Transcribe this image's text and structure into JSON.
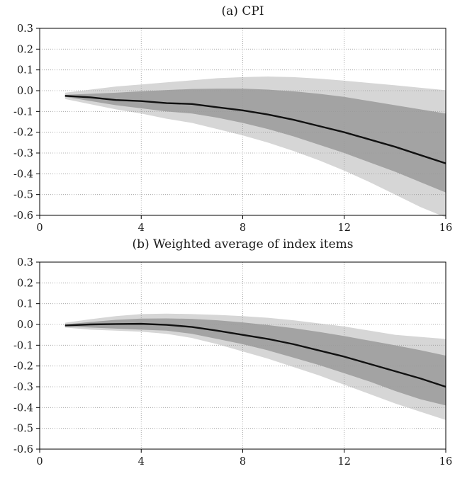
{
  "chart_data": [
    {
      "type": "line",
      "title": "(a) CPI",
      "xlabel": "",
      "ylabel": "",
      "xlim": [
        0,
        16
      ],
      "ylim": [
        -0.6,
        0.3
      ],
      "xticks": [
        0,
        4,
        8,
        12,
        16
      ],
      "yticks": [
        0.3,
        0.2,
        0.1,
        0.0,
        -0.1,
        -0.2,
        -0.3,
        -0.4,
        -0.5,
        -0.6
      ],
      "xtick_labels": [
        "0",
        "4",
        "8",
        "12",
        "16"
      ],
      "ytick_labels": [
        "0.3",
        "0.2",
        "0.1",
        "0.0",
        "-0.1",
        "-0.2",
        "-0.3",
        "-0.4",
        "-0.5",
        "-0.6"
      ],
      "grid": "dotted",
      "x": [
        1,
        2,
        3,
        4,
        5,
        6,
        7,
        8,
        9,
        10,
        11,
        12,
        13,
        14,
        15,
        16
      ],
      "line": [
        -0.025,
        -0.032,
        -0.045,
        -0.05,
        -0.06,
        -0.064,
        -0.08,
        -0.095,
        -0.115,
        -0.14,
        -0.17,
        -0.2,
        -0.235,
        -0.27,
        -0.31,
        -0.35
      ],
      "inner_band": {
        "upper": [
          -0.02,
          -0.015,
          -0.01,
          -0.003,
          0.003,
          0.008,
          0.01,
          0.01,
          0.005,
          -0.003,
          -0.015,
          -0.03,
          -0.05,
          -0.07,
          -0.09,
          -0.11
        ],
        "lower": [
          -0.03,
          -0.05,
          -0.07,
          -0.085,
          -0.1,
          -0.11,
          -0.13,
          -0.155,
          -0.185,
          -0.22,
          -0.26,
          -0.3,
          -0.345,
          -0.39,
          -0.44,
          -0.49
        ]
      },
      "outer_band": {
        "upper": [
          -0.01,
          0.005,
          0.02,
          0.03,
          0.04,
          0.05,
          0.06,
          0.065,
          0.068,
          0.065,
          0.058,
          0.048,
          0.037,
          0.026,
          0.014,
          0.002
        ],
        "lower": [
          -0.04,
          -0.065,
          -0.09,
          -0.11,
          -0.135,
          -0.155,
          -0.185,
          -0.215,
          -0.25,
          -0.29,
          -0.335,
          -0.385,
          -0.44,
          -0.5,
          -0.56,
          -0.61
        ]
      }
    },
    {
      "type": "line",
      "title": "(b) Weighted average of index items",
      "xlabel": "",
      "ylabel": "",
      "xlim": [
        0,
        16
      ],
      "ylim": [
        -0.6,
        0.3
      ],
      "xticks": [
        0,
        4,
        8,
        12,
        16
      ],
      "yticks": [
        0.3,
        0.2,
        0.1,
        0.0,
        -0.1,
        -0.2,
        -0.3,
        -0.4,
        -0.5,
        -0.6
      ],
      "xtick_labels": [
        "0",
        "4",
        "8",
        "12",
        "16"
      ],
      "ytick_labels": [
        "0.3",
        "0.2",
        "0.1",
        "0.0",
        "-0.1",
        "-0.2",
        "-0.3",
        "-0.4",
        "-0.5",
        "-0.6"
      ],
      "grid": "dotted",
      "x": [
        1,
        2,
        3,
        4,
        5,
        6,
        7,
        8,
        9,
        10,
        11,
        12,
        13,
        14,
        15,
        16
      ],
      "line": [
        -0.005,
        0.0,
        0.002,
        0.003,
        -0.002,
        -0.012,
        -0.03,
        -0.05,
        -0.07,
        -0.095,
        -0.125,
        -0.155,
        -0.19,
        -0.225,
        -0.26,
        -0.3
      ],
      "inner_band": {
        "upper": [
          0.0,
          0.012,
          0.022,
          0.028,
          0.029,
          0.027,
          0.02,
          0.01,
          -0.003,
          -0.018,
          -0.036,
          -0.056,
          -0.078,
          -0.1,
          -0.124,
          -0.15
        ],
        "lower": [
          -0.01,
          -0.015,
          -0.02,
          -0.025,
          -0.03,
          -0.045,
          -0.07,
          -0.095,
          -0.125,
          -0.16,
          -0.195,
          -0.235,
          -0.275,
          -0.32,
          -0.36,
          -0.39
        ]
      },
      "outer_band": {
        "upper": [
          0.008,
          0.025,
          0.04,
          0.05,
          0.052,
          0.05,
          0.046,
          0.04,
          0.032,
          0.02,
          0.005,
          -0.01,
          -0.03,
          -0.05,
          -0.06,
          -0.07
        ],
        "lower": [
          -0.015,
          -0.025,
          -0.03,
          -0.035,
          -0.045,
          -0.065,
          -0.095,
          -0.13,
          -0.165,
          -0.205,
          -0.245,
          -0.29,
          -0.335,
          -0.38,
          -0.42,
          -0.46
        ]
      }
    }
  ],
  "colors": {
    "outer_band": "#d6d6d6",
    "inner_band": "#a3a3a3",
    "line": "#111111",
    "axis": "#000000",
    "grid": "#9a9a9a"
  }
}
